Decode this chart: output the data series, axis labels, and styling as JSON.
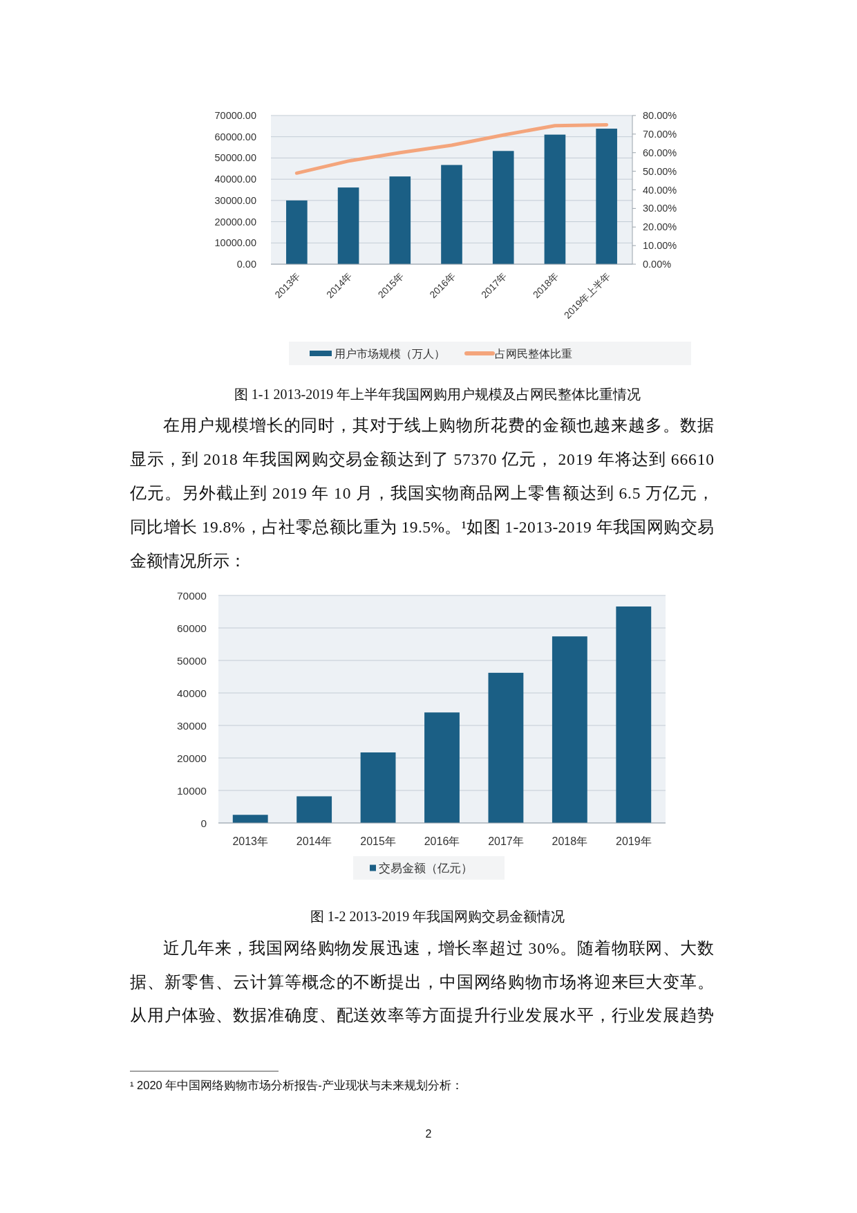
{
  "chart_data": [
    {
      "type": "bar",
      "title": "图 1-1 2013-2019 年上半年我国网购用户规模及占网民整体比重情况",
      "categories": [
        "2013年",
        "2014年",
        "2015年",
        "2016年",
        "2017年",
        "2018年",
        "2019年上半年"
      ],
      "series": [
        {
          "name": "用户市场规模（万人）",
          "color": "#1b5f85",
          "values": [
            30000,
            36100,
            41300,
            46700,
            53300,
            61000,
            63800
          ]
        },
        {
          "name": "占网民整体比重",
          "type": "line",
          "axis": "y2",
          "color": "#f4a57c",
          "values": [
            49,
            55.5,
            60,
            64,
            69.5,
            74.5,
            75
          ]
        }
      ],
      "ylim": [
        0,
        70000
      ],
      "yticks": [
        {
          "value": 0,
          "label": "0.00"
        },
        {
          "value": 10000,
          "label": "10000.00"
        },
        {
          "value": 20000,
          "label": "20000.00"
        },
        {
          "value": 30000,
          "label": "30000.00"
        },
        {
          "value": 40000,
          "label": "40000.00"
        },
        {
          "value": 50000,
          "label": "50000.00"
        },
        {
          "value": 60000,
          "label": "60000.00"
        },
        {
          "value": 70000,
          "label": "70000.00"
        }
      ],
      "y2lim": [
        0,
        80
      ],
      "y2ticks": [
        {
          "value": 0,
          "label": "0.00%"
        },
        {
          "value": 10,
          "label": "10.00%"
        },
        {
          "value": 20,
          "label": "20.00%"
        },
        {
          "value": 30,
          "label": "30.00%"
        },
        {
          "value": 40,
          "label": "40.00%"
        },
        {
          "value": 50,
          "label": "50.00%"
        },
        {
          "value": 60,
          "label": "60.00%"
        },
        {
          "value": 70,
          "label": "70.00%"
        },
        {
          "value": 80,
          "label": "80.00%"
        }
      ],
      "grid": "y",
      "legend": "bottom",
      "annotations": [
        "在用户规模增长的同时，其对于线上购物所花费的金额也越来越多。数据",
        "显示，到 2018 年我国网购交易金额达到了 57370 亿元， 2019 年将达到 66610",
        "亿元。另外截止到 2019 年 10 月，我国实物商品网上零售额达到 6.5 万亿元，",
        "同比增长 19.8%，占社零总额比重为 19.5%。¹如图 1-2013-2019 年我国网购交易",
        "金额情况所示："
      ]
    },
    {
      "type": "bar",
      "title": "图 1-2 2013-2019 年我国网购交易金额情况",
      "categories": [
        "2013年",
        "2014年",
        "2015年",
        "2016年",
        "2017年",
        "2018年",
        "2019年"
      ],
      "series": [
        {
          "name": "交易金额（亿元）",
          "color": "#1b5f85",
          "values": [
            2500,
            8200,
            21700,
            34000,
            46200,
            57400,
            66600
          ]
        }
      ],
      "ylim": [
        0,
        70000
      ],
      "yticks": [
        0,
        10000,
        20000,
        30000,
        40000,
        50000,
        60000,
        70000
      ],
      "grid": "y",
      "legend": "bottom",
      "annotations": [
        "近几年来，我国网络购物发展迅速，增长率超过 30%。随着物联网、大数",
        "据、新零售、云计算等概念的不断提出，中国网络购物市场将迎来巨大变革。",
        "从用户体验、数据准确度、配送效率等方面提升行业发展水平，行业发展趋势",
        "¹ 2020 年中国网络购物市场分析报告-产业现状与未来规划分析：",
        "2"
      ]
    }
  ]
}
